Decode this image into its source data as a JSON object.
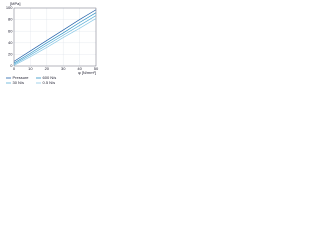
{
  "chart_data": {
    "type": "line",
    "y_label": "[MPa]",
    "x_label": "φ [N/mm²]",
    "x": [
      0,
      10,
      20,
      30,
      40,
      50
    ],
    "series": [
      {
        "name": "Pressure",
        "color": "#1f5fa8",
        "values": [
          8,
          26,
          44,
          62,
          80,
          97
        ]
      },
      {
        "name": "600 N/s",
        "color": "#2a8fc4",
        "values": [
          5,
          22,
          40,
          57,
          75,
          92
        ]
      },
      {
        "name": "30 N/s",
        "color": "#5bb0d8",
        "values": [
          3,
          19,
          36,
          53,
          70,
          87
        ]
      },
      {
        "name": "0.5 N/s",
        "color": "#8cc9e6",
        "values": [
          1,
          16,
          32,
          49,
          65,
          82
        ]
      }
    ],
    "xlim": [
      0,
      50
    ],
    "xticks": [
      0,
      10,
      20,
      30,
      40,
      50
    ],
    "ylim": [
      0,
      100
    ],
    "yticks": [
      0,
      20,
      40,
      60,
      80,
      100
    ],
    "grid": true
  }
}
